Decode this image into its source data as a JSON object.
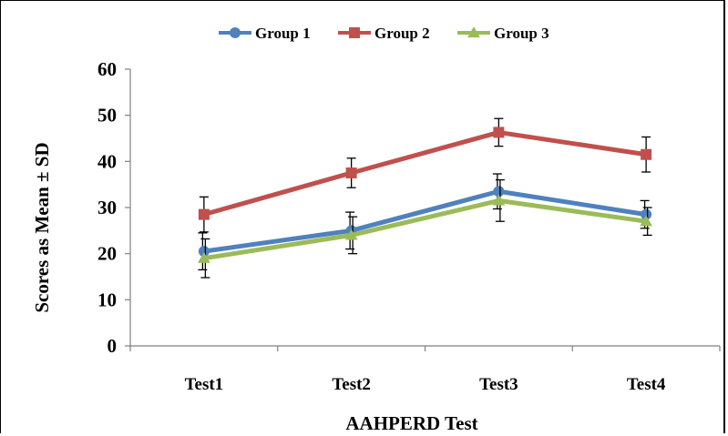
{
  "chart_data": {
    "type": "line",
    "title": "",
    "xlabel": "AAHPERD Test",
    "ylabel": "Scores as Mean ± SD",
    "categories": [
      "Test1",
      "Test2",
      "Test3",
      "Test4"
    ],
    "ylim": [
      0,
      60
    ],
    "yticks": [
      "0",
      "10",
      "20",
      "30",
      "40",
      "50",
      "60"
    ],
    "grid": false,
    "legend": "top",
    "series": [
      {
        "name": "Group 1",
        "color": "#4F81BD",
        "marker": "circle",
        "values": [
          20.5,
          25.0,
          33.5,
          28.5
        ],
        "sd": [
          4.0,
          4.0,
          3.8,
          3.0
        ]
      },
      {
        "name": "Group 2",
        "color": "#C0504D",
        "marker": "square",
        "values": [
          28.5,
          37.5,
          46.3,
          41.5
        ],
        "sd": [
          3.8,
          3.2,
          3.0,
          3.8
        ]
      },
      {
        "name": "Group 3",
        "color": "#9BBB59",
        "marker": "triangle",
        "values": [
          19.0,
          24.0,
          31.5,
          27.0
        ],
        "sd": [
          4.2,
          4.0,
          4.5,
          3.0
        ]
      }
    ]
  }
}
